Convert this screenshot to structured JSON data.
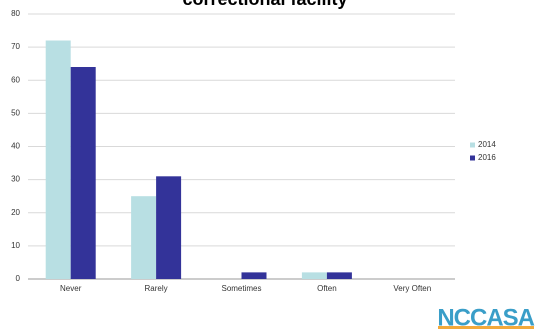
{
  "chart_data": {
    "type": "bar",
    "title": "correctional facility",
    "categories": [
      "Never",
      "Rarely",
      "Sometimes",
      "Often",
      "Very Often"
    ],
    "series": [
      {
        "name": "2014",
        "color": "#b8dfe3",
        "values": [
          72,
          25,
          0,
          2,
          0
        ]
      },
      {
        "name": "2016",
        "color": "#333399",
        "values": [
          64,
          31,
          2,
          2,
          0
        ]
      }
    ],
    "ylim": [
      0,
      80
    ],
    "yticks": [
      0,
      10,
      20,
      30,
      40,
      50,
      60,
      70,
      80
    ],
    "grid": true,
    "legend": "right"
  },
  "logo": "NCCASA"
}
